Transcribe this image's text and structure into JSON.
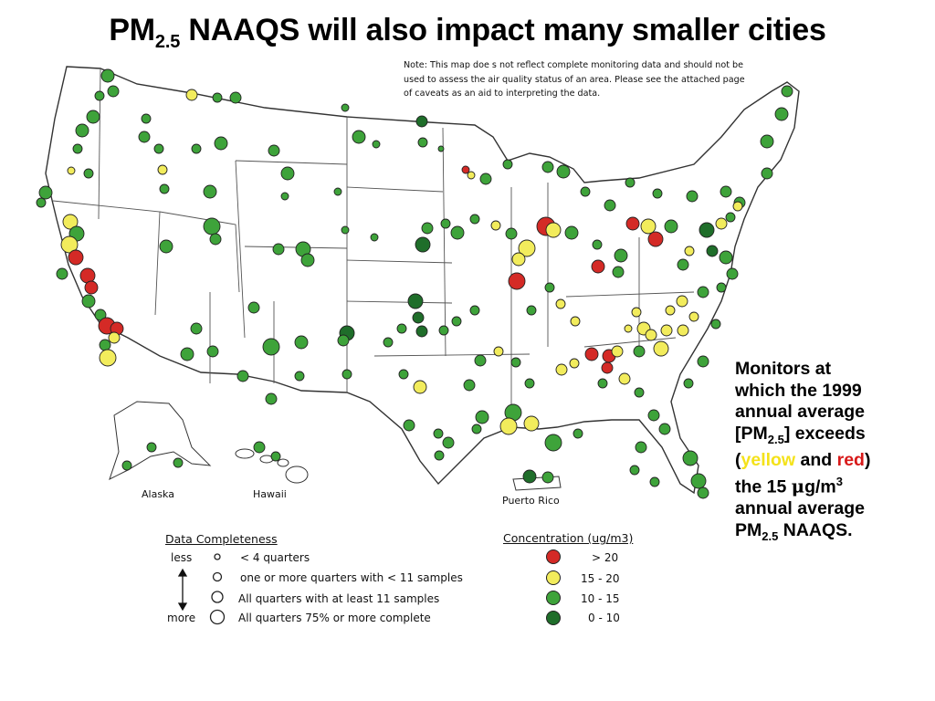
{
  "slide": {
    "title_main": "PM",
    "title_sub": "2.5",
    "title_rest": " NAAQS will also impact many smaller cities"
  },
  "map": {
    "note": "Note:  This map doe s not reflect complete monitoring data and should not be used to assess the air quality status of an area.  Please see the attached page of caveats as an aid to interpreting the data.",
    "labels": {
      "alaska": "Alaska",
      "hawaii": "Hawaii",
      "puerto_rico": "Puerto Rico"
    },
    "colors": {
      "red": "#d42a26",
      "yellow": "#f2ec5c",
      "green": "#3ea33a",
      "dark_green": "#1f6e2a",
      "outline": "#222222",
      "state_line": "#333333"
    }
  },
  "side_note": {
    "line1": "Monitors at",
    "line2": "which the 1999",
    "line3": "annual average",
    "pm_open": "[PM",
    "pm_sub": "2.5",
    "pm_close": "] exceeds",
    "paren_open": "(",
    "yellow_word": "yellow",
    "and_word": " and ",
    "red_word": "red",
    "paren_close": ")",
    "line5a": "the 15 ",
    "mu": "μ",
    "line5b": "g/m",
    "sup3": "3",
    "line6": "annual average",
    "final_pm": "PM",
    "final_sub": "2.5",
    "final_rest": " NAAQS."
  },
  "legend": {
    "data_completeness": {
      "title": "Data Completeness",
      "less": "less",
      "more": "more",
      "rows": [
        "< 4 quarters",
        "one or more quarters with < 11  samples",
        "All quarters with at least 11 samples",
        "All quarters 75% or more complete"
      ]
    },
    "concentration": {
      "title": "Concentration (ug/m3)",
      "rows": [
        {
          "label": "> 20",
          "color": "#d42a26"
        },
        {
          "label": "15 - 20",
          "color": "#f2ec5c"
        },
        {
          "label": "10 - 15",
          "color": "#3ea33a"
        },
        {
          "label": "0 - 10",
          "color": "#1f6e2a"
        }
      ]
    }
  }
}
